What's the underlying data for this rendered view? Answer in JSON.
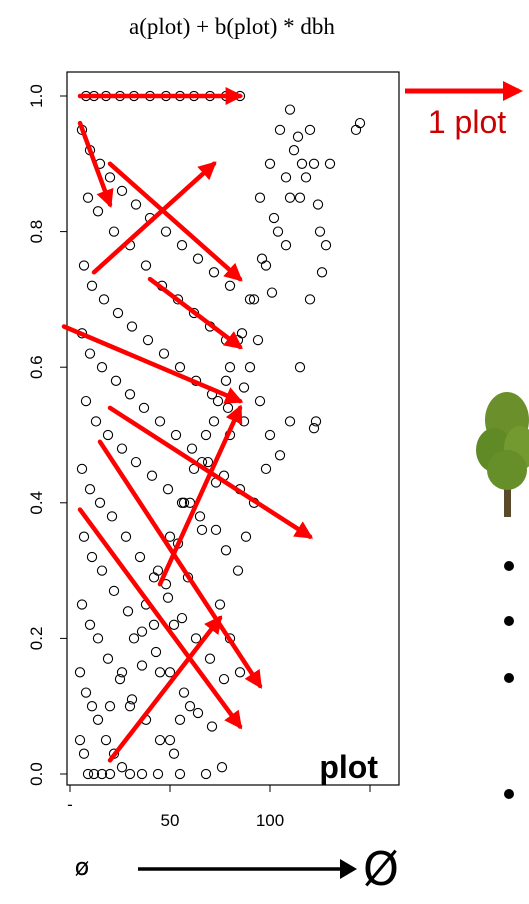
{
  "formula": "a(plot) + b(plot) * dbh",
  "one_plot_label": "1 plot",
  "diameter_small": "ø",
  "diameter_large": "Ø",
  "colors": {
    "arrow": "#ff0000",
    "plot_label": "#cc0000",
    "points": "#000000",
    "tree_foliage": "#6b8f2a",
    "tree_trunk": "#5a4a2a"
  },
  "icons": [
    "tree-icon",
    "bullet-icon"
  ],
  "chart_data": {
    "type": "scatter",
    "title": "",
    "xlabel": "",
    "ylabel": "",
    "xlim": [
      -5,
      150
    ],
    "ylim": [
      0,
      1
    ],
    "grid": false,
    "marker": "open-circle",
    "panel_label": "plot",
    "x_ticks": [
      {
        "value": 0,
        "label": "-"
      },
      {
        "value": 50,
        "label": "50"
      },
      {
        "value": 100,
        "label": "100"
      }
    ],
    "y_ticks": [
      {
        "value": 0.0,
        "label": "0.0"
      },
      {
        "value": 0.2,
        "label": "0.2"
      },
      {
        "value": 0.4,
        "label": "0.4"
      },
      {
        "value": 0.6,
        "label": "0.6"
      },
      {
        "value": 0.8,
        "label": "0.8"
      },
      {
        "value": 1.0,
        "label": "1.0"
      }
    ],
    "series": [
      {
        "values": [
          [
            8,
            1.0
          ],
          [
            12,
            1.0
          ],
          [
            18,
            1.0
          ],
          [
            25,
            1.0
          ],
          [
            32,
            1.0
          ],
          [
            40,
            1.0
          ],
          [
            48,
            1.0
          ],
          [
            55,
            1.0
          ],
          [
            62,
            1.0
          ],
          [
            70,
            1.0
          ],
          [
            78,
            1.0
          ],
          [
            85,
            1.0
          ],
          [
            6,
            0.95
          ],
          [
            10,
            0.92
          ],
          [
            15,
            0.9
          ],
          [
            20,
            0.88
          ],
          [
            26,
            0.86
          ],
          [
            33,
            0.84
          ],
          [
            40,
            0.82
          ],
          [
            48,
            0.8
          ],
          [
            56,
            0.78
          ],
          [
            64,
            0.76
          ],
          [
            72,
            0.74
          ],
          [
            80,
            0.72
          ],
          [
            9,
            0.85
          ],
          [
            14,
            0.83
          ],
          [
            22,
            0.8
          ],
          [
            30,
            0.78
          ],
          [
            38,
            0.75
          ],
          [
            46,
            0.72
          ],
          [
            54,
            0.7
          ],
          [
            62,
            0.68
          ],
          [
            70,
            0.66
          ],
          [
            78,
            0.64
          ],
          [
            7,
            0.75
          ],
          [
            11,
            0.72
          ],
          [
            17,
            0.7
          ],
          [
            24,
            0.68
          ],
          [
            31,
            0.66
          ],
          [
            39,
            0.64
          ],
          [
            47,
            0.62
          ],
          [
            55,
            0.6
          ],
          [
            63,
            0.58
          ],
          [
            71,
            0.56
          ],
          [
            79,
            0.54
          ],
          [
            87,
            0.52
          ],
          [
            6,
            0.65
          ],
          [
            10,
            0.62
          ],
          [
            16,
            0.6
          ],
          [
            23,
            0.58
          ],
          [
            30,
            0.56
          ],
          [
            37,
            0.54
          ],
          [
            45,
            0.52
          ],
          [
            53,
            0.5
          ],
          [
            61,
            0.48
          ],
          [
            69,
            0.46
          ],
          [
            77,
            0.44
          ],
          [
            85,
            0.42
          ],
          [
            8,
            0.55
          ],
          [
            13,
            0.52
          ],
          [
            19,
            0.5
          ],
          [
            26,
            0.48
          ],
          [
            33,
            0.46
          ],
          [
            41,
            0.44
          ],
          [
            49,
            0.42
          ],
          [
            57,
            0.4
          ],
          [
            65,
            0.38
          ],
          [
            73,
            0.36
          ],
          [
            6,
            0.45
          ],
          [
            10,
            0.42
          ],
          [
            15,
            0.4
          ],
          [
            21,
            0.38
          ],
          [
            28,
            0.35
          ],
          [
            35,
            0.32
          ],
          [
            42,
            0.29
          ],
          [
            49,
            0.26
          ],
          [
            56,
            0.23
          ],
          [
            63,
            0.2
          ],
          [
            70,
            0.17
          ],
          [
            77,
            0.14
          ],
          [
            7,
            0.35
          ],
          [
            11,
            0.32
          ],
          [
            16,
            0.3
          ],
          [
            22,
            0.27
          ],
          [
            29,
            0.24
          ],
          [
            36,
            0.21
          ],
          [
            43,
            0.18
          ],
          [
            50,
            0.15
          ],
          [
            57,
            0.12
          ],
          [
            64,
            0.09
          ],
          [
            71,
            0.07
          ],
          [
            6,
            0.25
          ],
          [
            10,
            0.22
          ],
          [
            14,
            0.2
          ],
          [
            19,
            0.17
          ],
          [
            25,
            0.14
          ],
          [
            31,
            0.11
          ],
          [
            38,
            0.08
          ],
          [
            45,
            0.05
          ],
          [
            52,
            0.03
          ],
          [
            5,
            0.15
          ],
          [
            8,
            0.12
          ],
          [
            11,
            0.1
          ],
          [
            14,
            0.08
          ],
          [
            18,
            0.05
          ],
          [
            22,
            0.03
          ],
          [
            26,
            0.01
          ],
          [
            30,
            0.0
          ],
          [
            36,
            0.0
          ],
          [
            44,
            0.0
          ],
          [
            55,
            0.0
          ],
          [
            68,
            0.0
          ],
          [
            76,
            0.01
          ],
          [
            5,
            0.05
          ],
          [
            7,
            0.03
          ],
          [
            9,
            0.0
          ],
          [
            12,
            0.0
          ],
          [
            16,
            0.0
          ],
          [
            20,
            0.0
          ],
          [
            20,
            0.1
          ],
          [
            26,
            0.15
          ],
          [
            32,
            0.2
          ],
          [
            38,
            0.25
          ],
          [
            44,
            0.3
          ],
          [
            50,
            0.35
          ],
          [
            56,
            0.4
          ],
          [
            62,
            0.45
          ],
          [
            68,
            0.5
          ],
          [
            74,
            0.55
          ],
          [
            80,
            0.6
          ],
          [
            86,
            0.65
          ],
          [
            92,
            0.7
          ],
          [
            98,
            0.75
          ],
          [
            104,
            0.8
          ],
          [
            110,
            0.85
          ],
          [
            116,
            0.9
          ],
          [
            120,
            0.95
          ],
          [
            30,
            0.1
          ],
          [
            36,
            0.16
          ],
          [
            42,
            0.22
          ],
          [
            48,
            0.28
          ],
          [
            54,
            0.34
          ],
          [
            60,
            0.4
          ],
          [
            66,
            0.46
          ],
          [
            72,
            0.52
          ],
          [
            78,
            0.58
          ],
          [
            84,
            0.64
          ],
          [
            90,
            0.7
          ],
          [
            96,
            0.76
          ],
          [
            102,
            0.82
          ],
          [
            108,
            0.88
          ],
          [
            114,
            0.94
          ],
          [
            45,
            0.15
          ],
          [
            52,
            0.22
          ],
          [
            59,
            0.29
          ],
          [
            66,
            0.36
          ],
          [
            73,
            0.43
          ],
          [
            80,
            0.5
          ],
          [
            87,
            0.57
          ],
          [
            94,
            0.64
          ],
          [
            101,
            0.71
          ],
          [
            108,
            0.78
          ],
          [
            115,
            0.85
          ],
          [
            122,
            0.9
          ],
          [
            90,
            0.6
          ],
          [
            95,
            0.55
          ],
          [
            100,
            0.5
          ],
          [
            105,
            0.47
          ],
          [
            110,
            0.52
          ],
          [
            115,
            0.6
          ],
          [
            120,
            0.7
          ],
          [
            125,
            0.8
          ],
          [
            130,
            0.9
          ],
          [
            122,
            0.51
          ],
          [
            123,
            0.52
          ],
          [
            143,
            0.95
          ],
          [
            145,
            0.96
          ],
          [
            85,
            0.15
          ],
          [
            80,
            0.2
          ],
          [
            75,
            0.25
          ],
          [
            60,
            0.1
          ],
          [
            55,
            0.08
          ],
          [
            50,
            0.05
          ],
          [
            88,
            0.35
          ],
          [
            92,
            0.4
          ],
          [
            98,
            0.45
          ],
          [
            84,
            0.3
          ],
          [
            78,
            0.33
          ],
          [
            95,
            0.85
          ],
          [
            100,
            0.9
          ],
          [
            105,
            0.95
          ],
          [
            110,
            0.98
          ],
          [
            112,
            0.92
          ],
          [
            118,
            0.88
          ],
          [
            124,
            0.84
          ],
          [
            128,
            0.78
          ],
          [
            126,
            0.74
          ]
        ]
      }
    ],
    "annotation_arrows": [
      [
        [
          5,
          1.0
        ],
        [
          85,
          1.0
        ]
      ],
      [
        [
          5,
          0.96
        ],
        [
          20,
          0.84
        ]
      ],
      [
        [
          20,
          0.9
        ],
        [
          85,
          0.73
        ]
      ],
      [
        [
          12,
          0.74
        ],
        [
          72,
          0.9
        ]
      ],
      [
        [
          40,
          0.73
        ],
        [
          85,
          0.63
        ]
      ],
      [
        [
          -3,
          0.66
        ],
        [
          85,
          0.55
        ]
      ],
      [
        [
          20,
          0.54
        ],
        [
          120,
          0.35
        ]
      ],
      [
        [
          15,
          0.49
        ],
        [
          95,
          0.13
        ]
      ],
      [
        [
          5,
          0.39
        ],
        [
          85,
          0.07
        ]
      ],
      [
        [
          45,
          0.28
        ],
        [
          85,
          0.54
        ]
      ],
      [
        [
          20,
          0.02
        ],
        [
          75,
          0.23
        ]
      ]
    ]
  }
}
